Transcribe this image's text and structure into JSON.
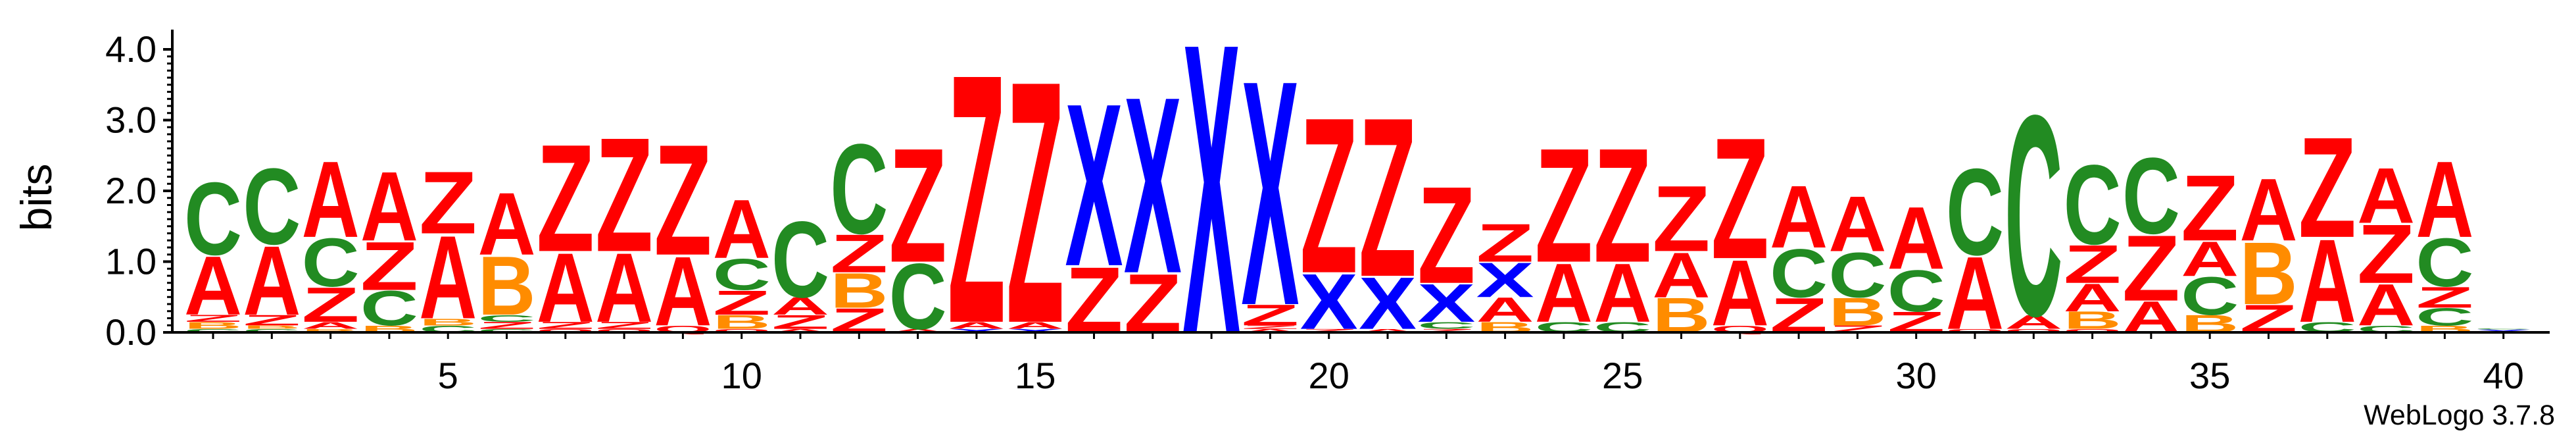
{
  "chart_data": {
    "type": "sequence-logo",
    "ylabel": "bits",
    "ylim": [
      0,
      4.0
    ],
    "y_ticks": [
      "0.0",
      "1.0",
      "2.0",
      "3.0",
      "4.0"
    ],
    "x_ticks": [
      "5",
      "10",
      "15",
      "20",
      "25",
      "30",
      "35",
      "40"
    ],
    "x_tick_positions": [
      5,
      10,
      15,
      20,
      25,
      30,
      35,
      40
    ],
    "n_positions": 40,
    "colors": {
      "A": "#ff0000",
      "Z": "#ff0000",
      "C": "#228b22",
      "B": "#ff8c00",
      "X": "#0000ff",
      "Q": "#ff0000"
    },
    "stacks": [
      [
        [
          "C",
          0.05
        ],
        [
          "B",
          0.1
        ],
        [
          "Z",
          0.1
        ],
        [
          "A",
          0.85
        ],
        [
          "C",
          1.05
        ]
      ],
      [
        [
          "C",
          0.05
        ],
        [
          "B",
          0.05
        ],
        [
          "Z",
          0.15
        ],
        [
          "A",
          1.0
        ],
        [
          "C",
          1.1
        ]
      ],
      [
        [
          "B",
          0.05
        ],
        [
          "A",
          0.1
        ],
        [
          "Z",
          0.5
        ],
        [
          "C",
          0.7
        ],
        [
          "A",
          1.1
        ]
      ],
      [
        [
          "B",
          0.1
        ],
        [
          "C",
          0.5
        ],
        [
          "Z",
          0.7
        ],
        [
          "A",
          1.0
        ]
      ],
      [
        [
          "C",
          0.1
        ],
        [
          "B",
          0.1
        ],
        [
          "A",
          1.2
        ],
        [
          "Z",
          0.9
        ]
      ],
      [
        [
          "C",
          0.05
        ],
        [
          "Z",
          0.1
        ],
        [
          "C",
          0.1
        ],
        [
          "B",
          0.85
        ],
        [
          "A",
          0.9
        ]
      ],
      [
        [
          "Q",
          0.05
        ],
        [
          "Z",
          0.1
        ],
        [
          "A",
          1.0
        ],
        [
          "Z",
          1.55
        ]
      ],
      [
        [
          "Q",
          0.05
        ],
        [
          "Z",
          0.1
        ],
        [
          "A",
          1.0
        ],
        [
          "Z",
          1.65
        ]
      ],
      [
        [
          "Q",
          0.1
        ],
        [
          "A",
          1.0
        ],
        [
          "Z",
          1.6
        ]
      ],
      [
        [
          "Q",
          0.05
        ],
        [
          "B",
          0.2
        ],
        [
          "Z",
          0.35
        ],
        [
          "C",
          0.45
        ],
        [
          "A",
          0.85
        ]
      ],
      [
        [
          "A",
          0.05
        ],
        [
          "Z",
          0.2
        ],
        [
          "A",
          0.25
        ],
        [
          "C",
          1.1
        ]
      ],
      [
        [
          "Z",
          0.35
        ],
        [
          "B",
          0.5
        ],
        [
          "Z",
          0.55
        ],
        [
          "C",
          1.3
        ]
      ],
      [
        [
          "A",
          0.05
        ],
        [
          "C",
          0.95
        ],
        [
          "Z",
          1.65
        ]
      ],
      [
        [
          "X",
          0.05
        ],
        [
          "A",
          0.1
        ],
        [
          "Z",
          3.6
        ]
      ],
      [
        [
          "X",
          0.05
        ],
        [
          "A",
          0.1
        ],
        [
          "Z",
          3.5
        ]
      ],
      [
        [
          "Z",
          0.95
        ],
        [
          "X",
          2.35
        ]
      ],
      [
        [
          "Z",
          0.85
        ],
        [
          "X",
          2.55
        ]
      ],
      [
        [
          "X",
          4.2
        ]
      ],
      [
        [
          "A",
          0.05
        ],
        [
          "Z",
          0.05
        ],
        [
          "Z",
          0.3
        ],
        [
          "X",
          3.25
        ]
      ],
      [
        [
          "Z",
          0.05
        ],
        [
          "X",
          0.8
        ],
        [
          "Z",
          2.25
        ]
      ],
      [
        [
          "A",
          0.05
        ],
        [
          "X",
          0.75
        ],
        [
          "Z",
          2.3
        ]
      ],
      [
        [
          "Z",
          0.05
        ],
        [
          "C",
          0.1
        ],
        [
          "X",
          0.55
        ],
        [
          "Z",
          1.4
        ]
      ],
      [
        [
          "B",
          0.15
        ],
        [
          "A",
          0.35
        ],
        [
          "X",
          0.5
        ],
        [
          "Z",
          0.55
        ]
      ],
      [
        [
          "C",
          0.15
        ],
        [
          "A",
          0.85
        ],
        [
          "Z",
          1.65
        ]
      ],
      [
        [
          "C",
          0.15
        ],
        [
          "A",
          0.85
        ],
        [
          "Z",
          1.65
        ]
      ],
      [
        [
          "B",
          0.5
        ],
        [
          "A",
          0.65
        ],
        [
          "Z",
          0.95
        ]
      ],
      [
        [
          "Q",
          0.1
        ],
        [
          "A",
          0.95
        ],
        [
          "Z",
          1.75
        ]
      ],
      [
        [
          "Z",
          0.5
        ],
        [
          "C",
          0.7
        ],
        [
          "A",
          0.9
        ]
      ],
      [
        [
          "Z",
          0.1
        ],
        [
          "B",
          0.4
        ],
        [
          "C",
          0.65
        ],
        [
          "A",
          0.8
        ]
      ],
      [
        [
          "Z",
          0.3
        ],
        [
          "C",
          0.6
        ],
        [
          "A",
          0.9
        ]
      ],
      [
        [
          "Q",
          0.05
        ],
        [
          "A",
          1.05
        ],
        [
          "C",
          1.25
        ]
      ],
      [
        [
          "Q",
          0.05
        ],
        [
          "A",
          0.2
        ],
        [
          "C",
          2.9
        ]
      ],
      [
        [
          "Q",
          0.05
        ],
        [
          "B",
          0.25
        ],
        [
          "A",
          0.4
        ],
        [
          "Z",
          0.55
        ],
        [
          "C",
          1.15
        ]
      ],
      [
        [
          "A",
          0.45
        ],
        [
          "Z",
          0.95
        ],
        [
          "C",
          1.1
        ]
      ],
      [
        [
          "B",
          0.25
        ],
        [
          "C",
          0.55
        ],
        [
          "A",
          0.5
        ],
        [
          "Z",
          0.95
        ]
      ],
      [
        [
          "Z",
          0.4
        ],
        [
          "B",
          0.9
        ],
        [
          "A",
          0.9
        ]
      ],
      [
        [
          "C",
          0.15
        ],
        [
          "A",
          1.2
        ],
        [
          "Z",
          1.45
        ]
      ],
      [
        [
          "C",
          0.1
        ],
        [
          "A",
          0.6
        ],
        [
          "Z",
          0.85
        ],
        [
          "A",
          0.8
        ]
      ],
      [
        [
          "B",
          0.1
        ],
        [
          "C",
          0.25
        ],
        [
          "Z",
          0.3
        ],
        [
          "C",
          0.7
        ],
        [
          "A",
          1.1
        ]
      ],
      [
        [
          "X",
          0.04
        ],
        [
          "C",
          0.01
        ]
      ]
    ]
  },
  "footer": {
    "credit": "WebLogo 3.7.8"
  }
}
